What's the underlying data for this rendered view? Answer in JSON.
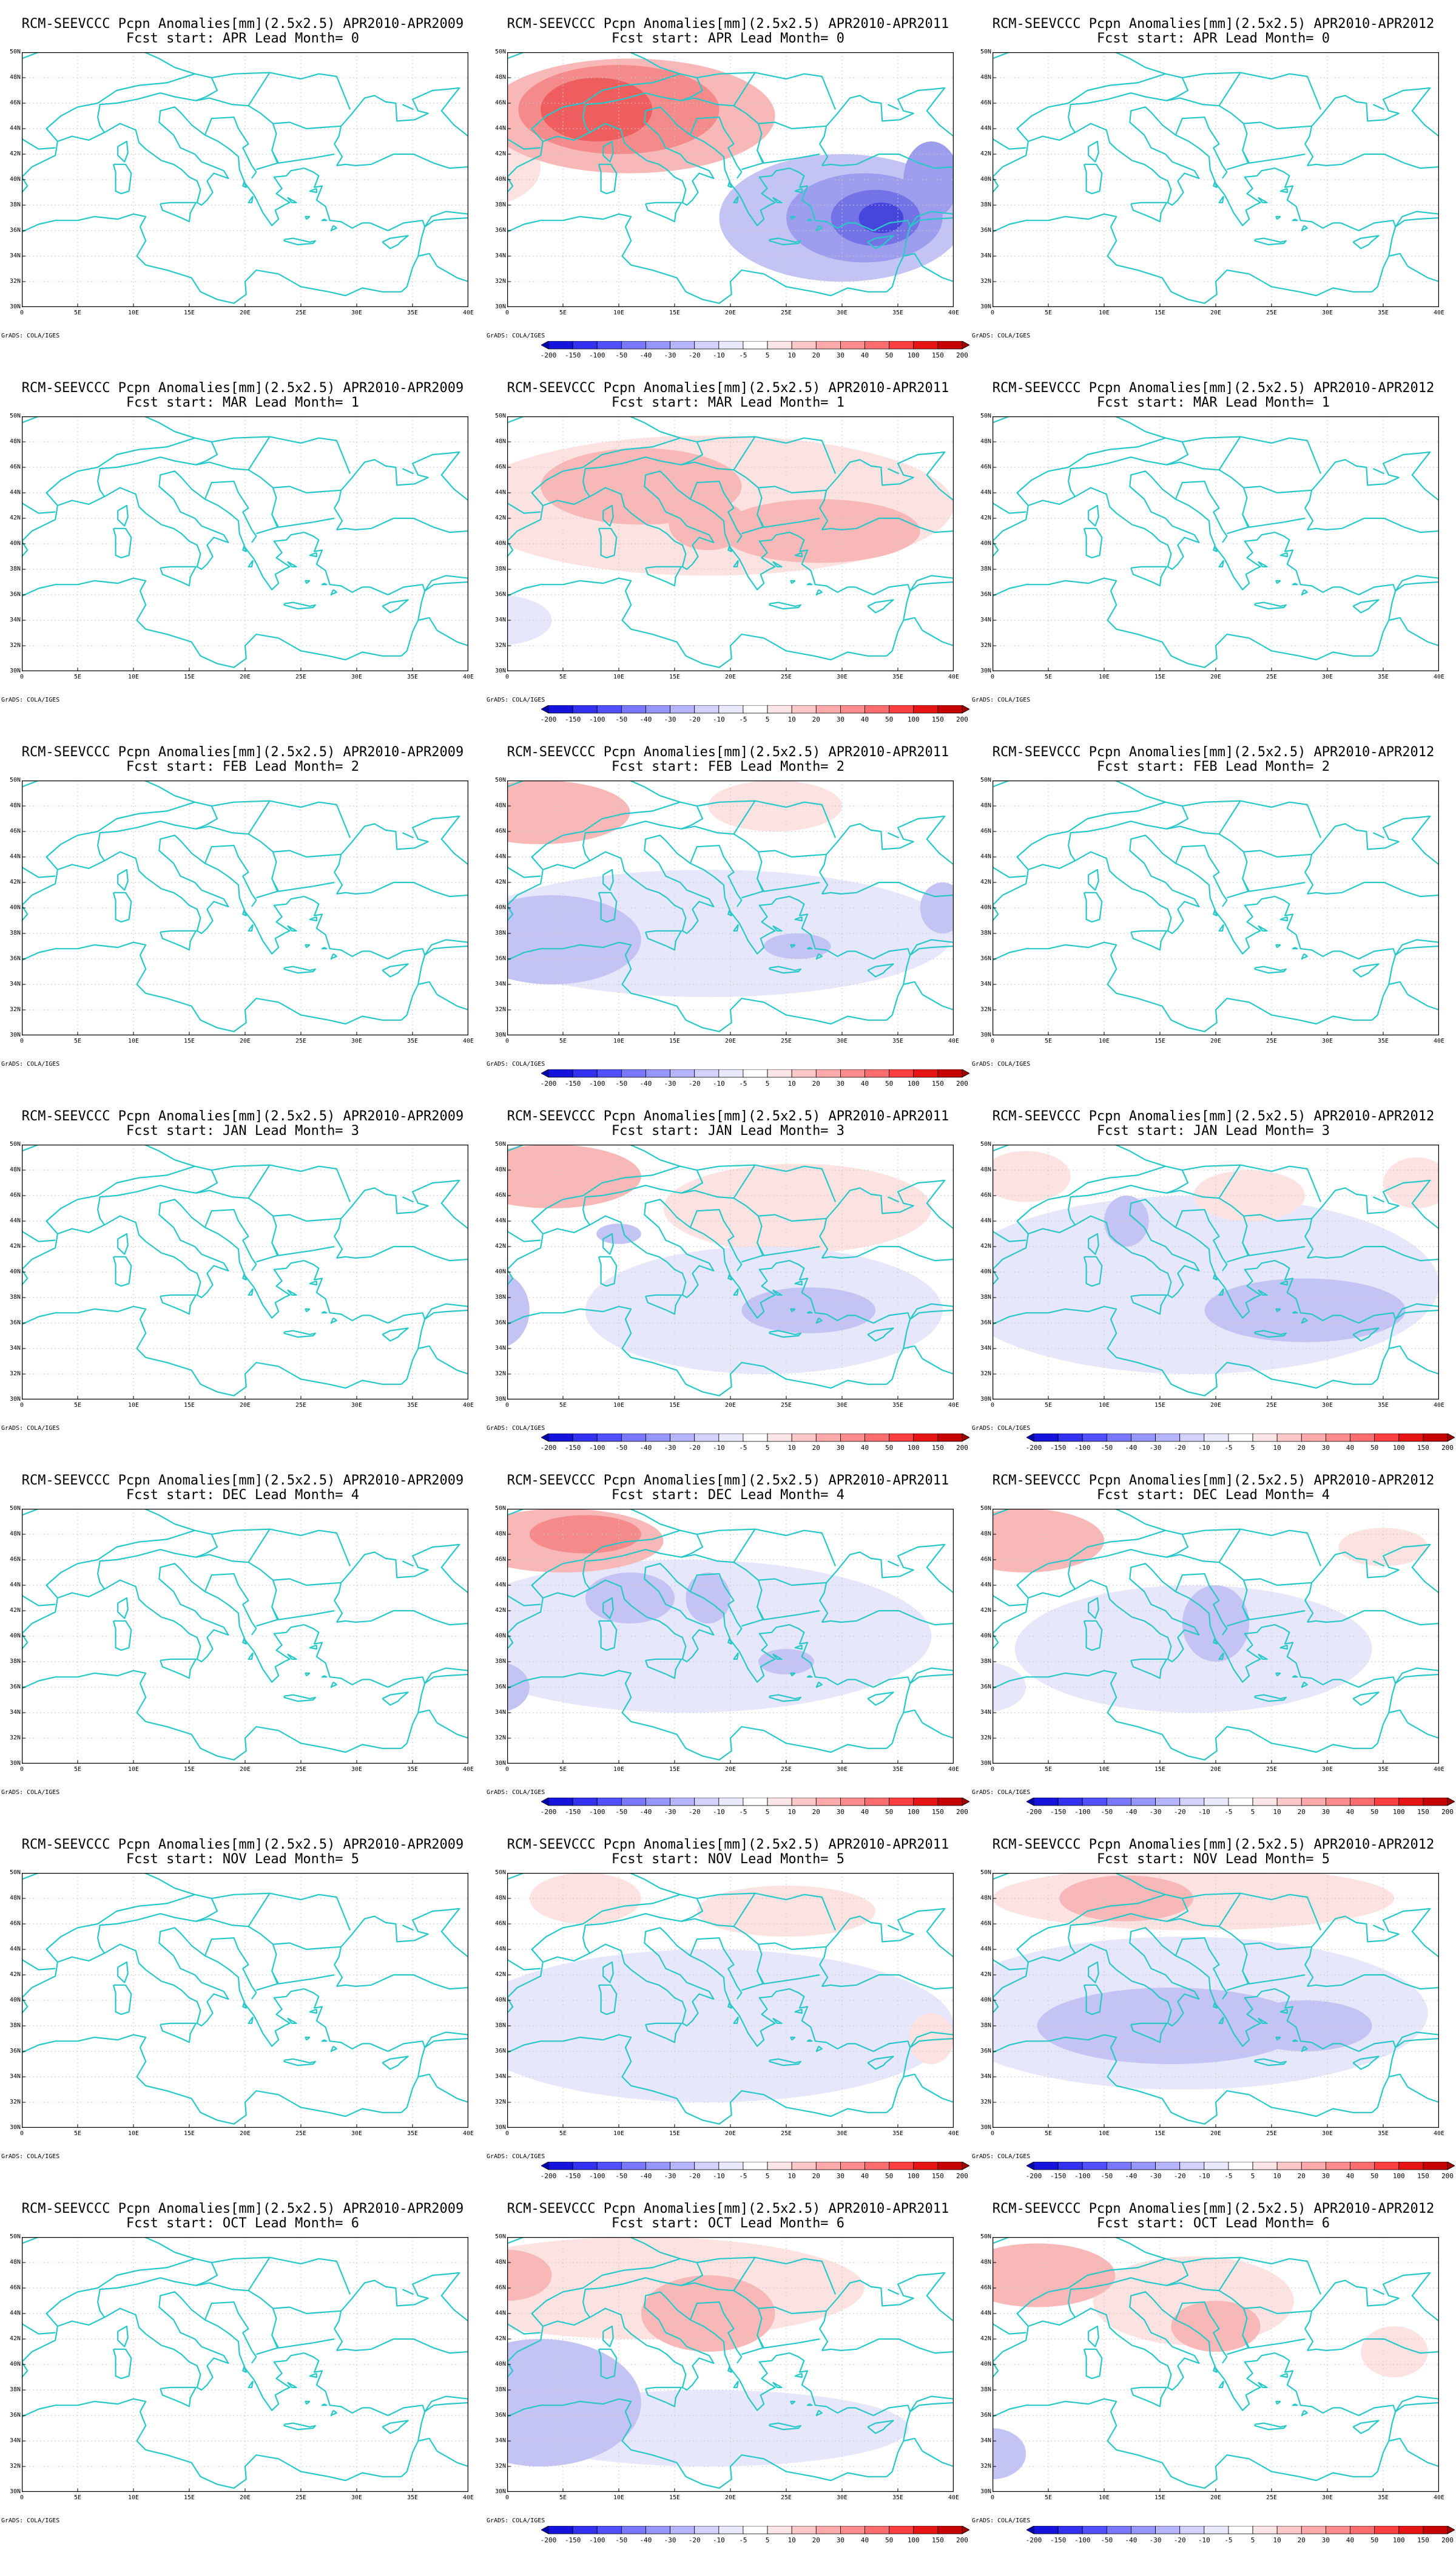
{
  "figure": {
    "panels": [
      {
        "id": "r1c1",
        "title": "RCM-SEEVCCC Pcpn Anomalies[mm](2.5x2.5) APR2010-APR2009",
        "subtitle": "Fcst start: APR  Lead Month= 0",
        "colorbar": false,
        "blobs": []
      },
      {
        "id": "r1c2",
        "title": "RCM-SEEVCCC Pcpn Anomalies[mm](2.5x2.5) APR2010-APR2011",
        "subtitle": "Fcst start: APR  Lead Month= 0",
        "colorbar": true,
        "blobs": [
          {
            "lon": 11,
            "lat": 45,
            "rx": 13,
            "ry": 4.5,
            "level": 2
          },
          {
            "lon": 10,
            "lat": 45.5,
            "rx": 9,
            "ry": 3.5,
            "level": 3
          },
          {
            "lon": 8,
            "lat": 45.5,
            "rx": 5,
            "ry": 2.5,
            "level": 4
          },
          {
            "lon": -2,
            "lat": 41,
            "rx": 5,
            "ry": 3,
            "level": 1
          },
          {
            "lon": 30,
            "lat": 37,
            "rx": 11,
            "ry": 5,
            "level": -2
          },
          {
            "lon": 32,
            "lat": 37,
            "rx": 7,
            "ry": 3.5,
            "level": -3
          },
          {
            "lon": 33,
            "lat": 37,
            "rx": 4,
            "ry": 2.2,
            "level": -4
          },
          {
            "lon": 33.5,
            "lat": 37,
            "rx": 2,
            "ry": 1.2,
            "level": -5
          },
          {
            "lon": 38,
            "lat": 40,
            "rx": 2.5,
            "ry": 3,
            "level": -3
          }
        ]
      },
      {
        "id": "r1c3",
        "title": "RCM-SEEVCCC Pcpn Anomalies[mm](2.5x2.5) APR2010-APR2012",
        "subtitle": "Fcst start: APR  Lead Month= 0",
        "colorbar": false,
        "blobs": []
      },
      {
        "id": "r2c1",
        "title": "RCM-SEEVCCC Pcpn Anomalies[mm](2.5x2.5) APR2010-APR2009",
        "subtitle": "Fcst start: MAR  Lead Month= 1",
        "colorbar": false,
        "blobs": []
      },
      {
        "id": "r2c2",
        "title": "RCM-SEEVCCC Pcpn Anomalies[mm](2.5x2.5) APR2010-APR2011",
        "subtitle": "Fcst start: MAR  Lead Month= 1",
        "colorbar": true,
        "blobs": [
          {
            "lon": 18,
            "lat": 43,
            "rx": 22,
            "ry": 5.5,
            "level": 1
          },
          {
            "lon": 12,
            "lat": 44.5,
            "rx": 9,
            "ry": 3,
            "level": 2
          },
          {
            "lon": 28,
            "lat": 41,
            "rx": 9,
            "ry": 2.5,
            "level": 2
          },
          {
            "lon": 18,
            "lat": 41.5,
            "rx": 3.5,
            "ry": 2,
            "level": 2
          },
          {
            "lon": -1,
            "lat": 34,
            "rx": 5,
            "ry": 2,
            "level": -1
          }
        ]
      },
      {
        "id": "r2c3",
        "title": "RCM-SEEVCCC Pcpn Anomalies[mm](2.5x2.5) APR2010-APR2012",
        "subtitle": "Fcst start: MAR  Lead Month= 1",
        "colorbar": false,
        "blobs": []
      },
      {
        "id": "r3c1",
        "title": "RCM-SEEVCCC Pcpn Anomalies[mm](2.5x2.5) APR2010-APR2009",
        "subtitle": "Fcst start: FEB  Lead Month= 2",
        "colorbar": false,
        "blobs": []
      },
      {
        "id": "r3c2",
        "title": "RCM-SEEVCCC Pcpn Anomalies[mm](2.5x2.5) APR2010-APR2011",
        "subtitle": "Fcst start: FEB  Lead Month= 2",
        "colorbar": true,
        "blobs": [
          {
            "lon": 3,
            "lat": 47.5,
            "rx": 8,
            "ry": 2.5,
            "level": 2
          },
          {
            "lon": 24,
            "lat": 48,
            "rx": 6,
            "ry": 2,
            "level": 1
          },
          {
            "lon": 18,
            "lat": 38,
            "rx": 22,
            "ry": 5,
            "level": -1
          },
          {
            "lon": 4,
            "lat": 37.5,
            "rx": 8,
            "ry": 3.5,
            "level": -2
          },
          {
            "lon": 26,
            "lat": 37,
            "rx": 3,
            "ry": 1,
            "level": -2
          },
          {
            "lon": 39,
            "lat": 40,
            "rx": 2,
            "ry": 2,
            "level": -2
          }
        ]
      },
      {
        "id": "r3c3",
        "title": "RCM-SEEVCCC Pcpn Anomalies[mm](2.5x2.5) APR2010-APR2012",
        "subtitle": "Fcst start: FEB  Lead Month= 2",
        "colorbar": false,
        "blobs": []
      },
      {
        "id": "r4c1",
        "title": "RCM-SEEVCCC Pcpn Anomalies[mm](2.5x2.5) APR2010-APR2009",
        "subtitle": "Fcst start: JAN  Lead Month= 3",
        "colorbar": false,
        "blobs": []
      },
      {
        "id": "r4c2",
        "title": "RCM-SEEVCCC Pcpn Anomalies[mm](2.5x2.5) APR2010-APR2011",
        "subtitle": "Fcst start: JAN  Lead Month= 3",
        "colorbar": true,
        "blobs": [
          {
            "lon": 4,
            "lat": 47.5,
            "rx": 8,
            "ry": 2.5,
            "level": 2
          },
          {
            "lon": 26,
            "lat": 45,
            "rx": 12,
            "ry": 3.5,
            "level": 1
          },
          {
            "lon": 23,
            "lat": 37,
            "rx": 16,
            "ry": 5,
            "level": -1
          },
          {
            "lon": 27,
            "lat": 37,
            "rx": 6,
            "ry": 1.8,
            "level": -2
          },
          {
            "lon": -1,
            "lat": 37,
            "rx": 3,
            "ry": 3,
            "level": -2
          },
          {
            "lon": 10,
            "lat": 43,
            "rx": 2,
            "ry": 0.8,
            "level": -2
          }
        ]
      },
      {
        "id": "r4c3",
        "title": "RCM-SEEVCCC Pcpn Anomalies[mm](2.5x2.5) APR2010-APR2012",
        "subtitle": "Fcst start: JAN  Lead Month= 3",
        "colorbar": true,
        "blobs": [
          {
            "lon": 18,
            "lat": 39,
            "rx": 22,
            "ry": 7,
            "level": -1
          },
          {
            "lon": 28,
            "lat": 37,
            "rx": 9,
            "ry": 2.5,
            "level": -2
          },
          {
            "lon": 12,
            "lat": 44,
            "rx": 2,
            "ry": 2,
            "level": -2
          },
          {
            "lon": 3,
            "lat": 47.5,
            "rx": 4,
            "ry": 2,
            "level": 1
          },
          {
            "lon": 23,
            "lat": 46,
            "rx": 5,
            "ry": 2,
            "level": 1
          },
          {
            "lon": 38,
            "lat": 47,
            "rx": 3,
            "ry": 2,
            "level": 1
          }
        ]
      },
      {
        "id": "r5c1",
        "title": "RCM-SEEVCCC Pcpn Anomalies[mm](2.5x2.5) APR2010-APR2009",
        "subtitle": "Fcst start: DEC  Lead Month= 4",
        "colorbar": false,
        "blobs": []
      },
      {
        "id": "r5c2",
        "title": "RCM-SEEVCCC Pcpn Anomalies[mm](2.5x2.5) APR2010-APR2011",
        "subtitle": "Fcst start: DEC  Lead Month= 4",
        "colorbar": true,
        "blobs": [
          {
            "lon": 5,
            "lat": 47.5,
            "rx": 9,
            "ry": 2.5,
            "level": 2
          },
          {
            "lon": 7,
            "lat": 48,
            "rx": 5,
            "ry": 1.5,
            "level": 3
          },
          {
            "lon": 16,
            "lat": 40,
            "rx": 22,
            "ry": 6,
            "level": -1
          },
          {
            "lon": 11,
            "lat": 43,
            "rx": 4,
            "ry": 2,
            "level": -2
          },
          {
            "lon": 18,
            "lat": 43,
            "rx": 2,
            "ry": 2,
            "level": -2
          },
          {
            "lon": -1,
            "lat": 36,
            "rx": 3,
            "ry": 2,
            "level": -2
          },
          {
            "lon": 25,
            "lat": 38,
            "rx": 2.5,
            "ry": 1,
            "level": -2
          }
        ]
      },
      {
        "id": "r5c3",
        "title": "RCM-SEEVCCC Pcpn Anomalies[mm](2.5x2.5) APR2010-APR2012",
        "subtitle": "Fcst start: DEC  Lead Month= 4",
        "colorbar": true,
        "blobs": [
          {
            "lon": 3,
            "lat": 47.5,
            "rx": 7,
            "ry": 2.5,
            "level": 2
          },
          {
            "lon": 18,
            "lat": 39,
            "rx": 16,
            "ry": 5,
            "level": -1
          },
          {
            "lon": 20,
            "lat": 41,
            "rx": 3,
            "ry": 3,
            "level": -2
          },
          {
            "lon": 35,
            "lat": 47,
            "rx": 4,
            "ry": 1.5,
            "level": 1
          },
          {
            "lon": -1,
            "lat": 36,
            "rx": 4,
            "ry": 2,
            "level": -1
          }
        ]
      },
      {
        "id": "r6c1",
        "title": "RCM-SEEVCCC Pcpn Anomalies[mm](2.5x2.5) APR2010-APR2009",
        "subtitle": "Fcst start: NOV  Lead Month= 5",
        "colorbar": false,
        "blobs": []
      },
      {
        "id": "r6c2",
        "title": "RCM-SEEVCCC Pcpn Anomalies[mm](2.5x2.5) APR2010-APR2011",
        "subtitle": "Fcst start: NOV  Lead Month= 5",
        "colorbar": true,
        "blobs": [
          {
            "lon": 7,
            "lat": 48,
            "rx": 5,
            "ry": 2,
            "level": 1
          },
          {
            "lon": 25,
            "lat": 47,
            "rx": 8,
            "ry": 2,
            "level": 1
          },
          {
            "lon": 18,
            "lat": 38,
            "rx": 22,
            "ry": 6,
            "level": -1
          },
          {
            "lon": 14,
            "lat": 40,
            "rx": 5,
            "ry": 2,
            "level": -1
          },
          {
            "lon": 38,
            "lat": 37,
            "rx": 2,
            "ry": 2,
            "level": 1
          }
        ]
      },
      {
        "id": "r6c3",
        "title": "RCM-SEEVCCC Pcpn Anomalies[mm](2.5x2.5) APR2010-APR2012",
        "subtitle": "Fcst start: NOV  Lead Month= 5",
        "colorbar": true,
        "blobs": [
          {
            "lon": 18,
            "lat": 48,
            "rx": 18,
            "ry": 2.5,
            "level": 1
          },
          {
            "lon": 12,
            "lat": 48,
            "rx": 6,
            "ry": 1.8,
            "level": 2
          },
          {
            "lon": 17,
            "lat": 39,
            "rx": 22,
            "ry": 6,
            "level": -1
          },
          {
            "lon": 16,
            "lat": 38,
            "rx": 12,
            "ry": 3,
            "level": -2
          },
          {
            "lon": 28,
            "lat": 38,
            "rx": 6,
            "ry": 2,
            "level": -2
          }
        ]
      },
      {
        "id": "r7c1",
        "title": "RCM-SEEVCCC Pcpn Anomalies[mm](2.5x2.5) APR2010-APR2009",
        "subtitle": "Fcst start: OCT  Lead Month= 6",
        "colorbar": false,
        "blobs": []
      },
      {
        "id": "r7c2",
        "title": "RCM-SEEVCCC Pcpn Anomalies[mm](2.5x2.5) APR2010-APR2011",
        "subtitle": "Fcst start: OCT  Lead Month= 6",
        "colorbar": true,
        "blobs": [
          {
            "lon": 12,
            "lat": 46,
            "rx": 20,
            "ry": 4,
            "level": 1
          },
          {
            "lon": 18,
            "lat": 44,
            "rx": 6,
            "ry": 3,
            "level": 2
          },
          {
            "lon": 0,
            "lat": 47,
            "rx": 4,
            "ry": 2,
            "level": 2
          },
          {
            "lon": 3,
            "lat": 37,
            "rx": 9,
            "ry": 5,
            "level": -2
          },
          {
            "lon": 18,
            "lat": 35,
            "rx": 18,
            "ry": 3,
            "level": -1
          }
        ]
      },
      {
        "id": "r7c3",
        "title": "RCM-SEEVCCC Pcpn Anomalies[mm](2.5x2.5) APR2010-APR2012",
        "subtitle": "Fcst start: OCT  Lead Month= 6",
        "colorbar": true,
        "blobs": [
          {
            "lon": 4,
            "lat": 47,
            "rx": 7,
            "ry": 2.5,
            "level": 2
          },
          {
            "lon": 18,
            "lat": 45,
            "rx": 9,
            "ry": 3.5,
            "level": 1
          },
          {
            "lon": 20,
            "lat": 43,
            "rx": 4,
            "ry": 2,
            "level": 2
          },
          {
            "lon": 0,
            "lat": 33,
            "rx": 3,
            "ry": 2,
            "level": -2
          },
          {
            "lon": 36,
            "lat": 41,
            "rx": 3,
            "ry": 2,
            "level": 1
          }
        ]
      }
    ],
    "axes": {
      "lon_ticks": [
        0,
        5,
        10,
        15,
        20,
        25,
        30,
        35,
        40
      ],
      "lon_labels": [
        "0",
        "5E",
        "10E",
        "15E",
        "20E",
        "25E",
        "30E",
        "35E",
        "40E"
      ],
      "lat_ticks": [
        30,
        32,
        34,
        36,
        38,
        40,
        42,
        44,
        46,
        48,
        50
      ],
      "lat_labels": [
        "30N",
        "32N",
        "34N",
        "36N",
        "38N",
        "40N",
        "42N",
        "44N",
        "46N",
        "48N",
        "50N"
      ],
      "lon_range": [
        0,
        40
      ],
      "lat_range": [
        30,
        50
      ]
    },
    "credit": "GrADS: COLA/IGES",
    "colorbar": {
      "labels": [
        "-200",
        "-150",
        "-100",
        "-50",
        "-40",
        "-30",
        "-20",
        "-10",
        "-5",
        "5",
        "10",
        "20",
        "30",
        "40",
        "50",
        "100",
        "150",
        "200"
      ],
      "colors": [
        "#0000b4",
        "#1414dc",
        "#3232f0",
        "#5050ff",
        "#7878ff",
        "#9696ff",
        "#b4b4ff",
        "#d2d2ff",
        "#e8e8ff",
        "#ffffff",
        "#ffe6e6",
        "#ffc8c8",
        "#ffaaaa",
        "#ff8c8c",
        "#ff6e6e",
        "#ff4040",
        "#e61414",
        "#c80000",
        "#a00000"
      ]
    },
    "colors": {
      "coast": "#28c8c8",
      "grid": "#c8c8c8",
      "pos1": "#fde2e2",
      "pos2": "#f9b8b8",
      "pos3": "#f48a8a",
      "pos4": "#ee5e5e",
      "pos5": "#e03030",
      "neg1": "#e7e7fb",
      "neg2": "#c3c3f4",
      "neg3": "#9d9dee",
      "neg4": "#7373e6",
      "neg5": "#4646dd"
    }
  }
}
